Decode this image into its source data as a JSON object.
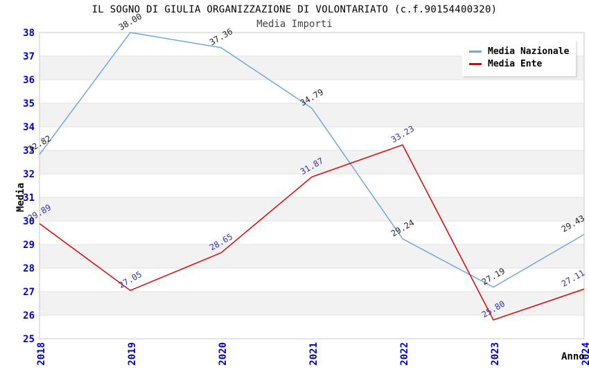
{
  "header": {
    "title": "IL SOGNO DI GIULIA ORGANIZZAZIONE DI VOLONTARIATO (c.f.90154400320)",
    "subtitle": "Media Importi"
  },
  "axes": {
    "y_title": "Media",
    "x_title": "Anno",
    "tick_label_color": "#0000CC"
  },
  "legend": {
    "items": [
      {
        "label": "Media Nazionale",
        "color": "#6EA8DF"
      },
      {
        "label": "Media Ente",
        "color": "#E00000"
      }
    ]
  },
  "colors": {
    "band": "#F2F2F2",
    "gridline": "#E2E2E2",
    "plot_border": "#C8C8C8",
    "nazionale_line": "#6EA8DF",
    "ente_line": "#E00000",
    "nazionale_value_label": "#222222",
    "ente_value_label": "#3333AA"
  },
  "chart_data": {
    "type": "line",
    "title": "IL SOGNO DI GIULIA ORGANIZZAZIONE DI VOLONTARIATO (c.f.90154400320)",
    "subtitle": "Media Importi",
    "categories": [
      "2018",
      "2019",
      "2020",
      "2021",
      "2022",
      "2023",
      "2024"
    ],
    "series": [
      {
        "name": "Media Nazionale",
        "values": [
          32.82,
          38.0,
          37.36,
          34.79,
          29.24,
          27.19,
          29.43
        ],
        "color": "#6EA8DF",
        "label_color": "#222222"
      },
      {
        "name": "Media Ente",
        "values": [
          29.89,
          27.05,
          28.65,
          31.87,
          33.23,
          25.8,
          27.11
        ],
        "color": "#E00000",
        "label_color": "#3333AA"
      }
    ],
    "xlabel": "Anno",
    "ylabel": "Media",
    "ylim": [
      25,
      38
    ],
    "y_ticks": [
      25,
      26,
      27,
      28,
      29,
      30,
      31,
      32,
      33,
      34,
      35,
      36,
      37,
      38
    ],
    "grid": true,
    "alternating_bands": true,
    "legend_position": "top-right",
    "value_labels_decimals": 2,
    "value_label_rotation_deg": -30,
    "x_tick_rotation_deg": -90
  }
}
